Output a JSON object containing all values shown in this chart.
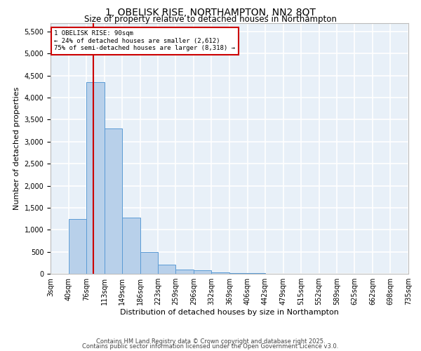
{
  "title": "1, OBELISK RISE, NORTHAMPTON, NN2 8QT",
  "subtitle": "Size of property relative to detached houses in Northampton",
  "xlabel": "Distribution of detached houses by size in Northampton",
  "ylabel": "Number of detached properties",
  "bin_labels": [
    "3sqm",
    "40sqm",
    "76sqm",
    "113sqm",
    "149sqm",
    "186sqm",
    "223sqm",
    "259sqm",
    "296sqm",
    "332sqm",
    "369sqm",
    "406sqm",
    "442sqm",
    "479sqm",
    "515sqm",
    "552sqm",
    "589sqm",
    "625sqm",
    "662sqm",
    "698sqm",
    "735sqm"
  ],
  "bin_edges": [
    3,
    40,
    76,
    113,
    149,
    186,
    223,
    259,
    296,
    332,
    369,
    406,
    442,
    479,
    515,
    552,
    589,
    625,
    662,
    698,
    735
  ],
  "bar_values": [
    0,
    1250,
    4350,
    3300,
    1280,
    500,
    200,
    100,
    75,
    30,
    20,
    15,
    0,
    0,
    0,
    0,
    0,
    0,
    0,
    0
  ],
  "bar_color": "#b8d0ea",
  "bar_edge_color": "#5b9bd5",
  "property_size": 90,
  "vline_color": "#cc0000",
  "annotation_line1": "1 OBELISK RISE: 90sqm",
  "annotation_line2": "← 24% of detached houses are smaller (2,612)",
  "annotation_line3": "75% of semi-detached houses are larger (8,318) →",
  "annotation_box_color": "#cc0000",
  "ylim": [
    0,
    5700
  ],
  "yticks": [
    0,
    500,
    1000,
    1500,
    2000,
    2500,
    3000,
    3500,
    4000,
    4500,
    5000,
    5500
  ],
  "background_color": "#e8f0f8",
  "grid_color": "#ffffff",
  "footer_line1": "Contains HM Land Registry data © Crown copyright and database right 2025.",
  "footer_line2": "Contains public sector information licensed under the Open Government Licence v3.0.",
  "title_fontsize": 10,
  "subtitle_fontsize": 8.5,
  "label_fontsize": 8,
  "tick_fontsize": 7,
  "footer_fontsize": 6
}
